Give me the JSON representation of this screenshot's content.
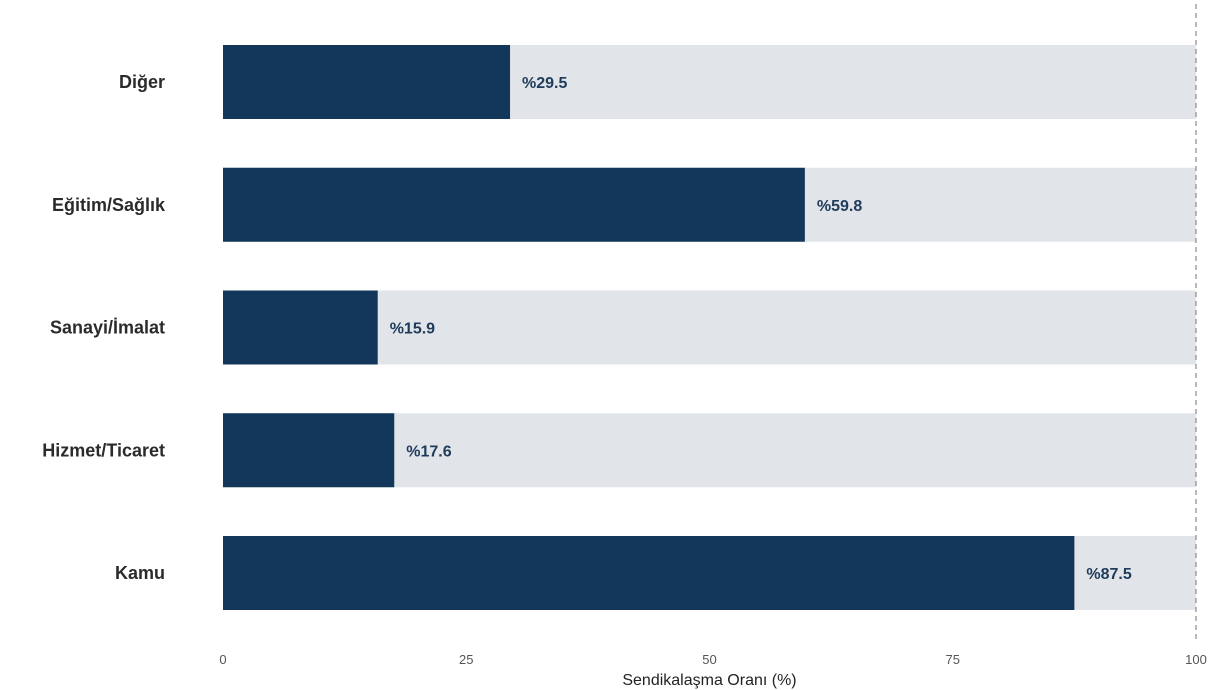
{
  "chart_data": {
    "type": "bar",
    "orientation": "horizontal",
    "categories": [
      "Diğer",
      "Eğitim/Sağlık",
      "Sanayi/İmalat",
      "Hizmet/Ticaret",
      "Kamu"
    ],
    "values": [
      29.5,
      59.8,
      15.9,
      17.6,
      87.5
    ],
    "value_labels": [
      "%29.5",
      "%59.8",
      "%15.9",
      "%17.6",
      "%87.5"
    ],
    "background_bar_value": 100,
    "xlabel": "Sendikalaşma Oranı (%)",
    "ylabel": "",
    "xlim": [
      0,
      100
    ],
    "xticks": [
      0,
      25,
      50,
      75,
      100
    ],
    "reference_line": 100,
    "grid": false,
    "colors": {
      "bar": "#13375a",
      "background_bar": "#e1e5ea",
      "value_label": "#1f3b5a",
      "reference_line": "#8a8a8a"
    }
  }
}
